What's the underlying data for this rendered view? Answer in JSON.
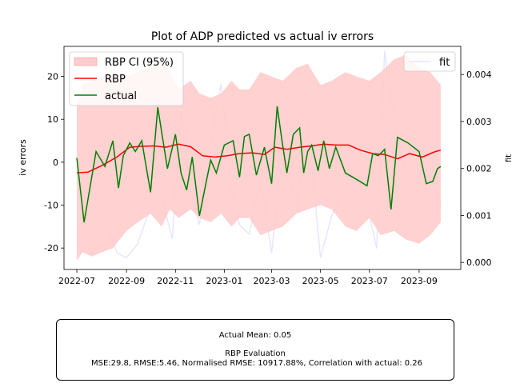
{
  "chart_data": {
    "type": "line",
    "title": "Plot of ADP predicted vs actual iv errors",
    "ylabel": "iv errors",
    "y2label": "fit",
    "ylim": [
      -25,
      27
    ],
    "y2lim": [
      -0.00015,
      0.0046
    ],
    "xlim": [
      "2022-06-15",
      "2023-10-23"
    ],
    "grid": false,
    "y_ticks": [
      -20,
      -10,
      0,
      10,
      20
    ],
    "y2_ticks": [
      0.0,
      0.001,
      0.002,
      0.003,
      0.004
    ],
    "y2_tick_labels": [
      "0.000",
      "0.001",
      "0.002",
      "0.003",
      "0.004"
    ],
    "x_ticks": [
      "2022-07-01",
      "2022-09-01",
      "2022-11-01",
      "2023-01-01",
      "2023-03-01",
      "2023-05-01",
      "2023-07-01",
      "2023-09-01"
    ],
    "x_tick_labels": [
      "2022-07",
      "2022-09",
      "2022-11",
      "2023-01",
      "2023-03",
      "2023-05",
      "2023-07",
      "2023-09"
    ],
    "legend_left": {
      "position": "upper-left",
      "entries": [
        {
          "label": "RBP CI (95%)",
          "kind": "patch",
          "color": "#ffcccc"
        },
        {
          "label": "RBP",
          "kind": "line",
          "color": "#ff0000"
        },
        {
          "label": "actual",
          "kind": "line",
          "color": "#008000"
        }
      ]
    },
    "legend_right": {
      "position": "upper-right",
      "entries": [
        {
          "label": "fit",
          "kind": "line",
          "color": "#e6e6ff"
        }
      ]
    },
    "colors": {
      "ci": "#ffcccc",
      "rbp": "#ff0000",
      "actual": "#008000",
      "fit": "#e6e6ff"
    },
    "ci": {
      "x": [
        "2022-07-01",
        "2022-07-08",
        "2022-07-20",
        "2022-08-01",
        "2022-08-15",
        "2022-09-01",
        "2022-09-15",
        "2022-10-01",
        "2022-10-15",
        "2022-10-25",
        "2022-11-05",
        "2022-11-20",
        "2022-12-01",
        "2022-12-15",
        "2022-12-28",
        "2023-01-10",
        "2023-01-20",
        "2023-02-01",
        "2023-02-15",
        "2023-03-01",
        "2023-03-15",
        "2023-04-01",
        "2023-04-15",
        "2023-05-01",
        "2023-05-15",
        "2023-06-01",
        "2023-06-15",
        "2023-07-01",
        "2023-07-15",
        "2023-08-01",
        "2023-08-15",
        "2023-09-01",
        "2023-09-15",
        "2023-09-28"
      ],
      "upper": [
        13,
        18,
        19,
        20,
        21,
        20,
        21,
        22,
        25,
        21,
        17,
        19,
        16,
        15,
        16,
        19,
        17,
        17,
        21,
        20,
        19,
        22,
        23,
        18,
        19,
        21,
        20,
        19,
        21,
        24,
        25,
        22,
        21,
        18
      ],
      "lower": [
        -23,
        -21,
        -22,
        -21,
        -20,
        -16,
        -14,
        -12,
        -15,
        -11,
        -13,
        -11,
        -13,
        -14,
        -12,
        -15,
        -13,
        -13,
        -17,
        -16,
        -15,
        -12,
        -11,
        -10,
        -11,
        -15,
        -16,
        -13,
        -17,
        -16,
        -18,
        -19,
        -17,
        -14
      ]
    },
    "rbp": {
      "x": [
        "2022-07-01",
        "2022-07-15",
        "2022-08-01",
        "2022-08-20",
        "2022-09-05",
        "2022-09-20",
        "2022-10-05",
        "2022-10-20",
        "2022-11-05",
        "2022-11-20",
        "2022-12-05",
        "2022-12-20",
        "2023-01-05",
        "2023-01-20",
        "2023-02-05",
        "2023-02-20",
        "2023-03-05",
        "2023-03-20",
        "2023-04-05",
        "2023-04-20",
        "2023-05-05",
        "2023-05-20",
        "2023-06-05",
        "2023-06-20",
        "2023-07-05",
        "2023-07-20",
        "2023-08-05",
        "2023-08-20",
        "2023-09-05",
        "2023-09-20",
        "2023-09-28"
      ],
      "y": [
        -2.5,
        -2.3,
        -0.8,
        1.2,
        3.5,
        3.7,
        3.8,
        3.5,
        4.2,
        3.6,
        1.5,
        1.2,
        1.5,
        2.0,
        2.2,
        1.8,
        3.5,
        3.0,
        3.5,
        3.8,
        4.2,
        4.0,
        4.0,
        2.8,
        2.0,
        1.8,
        0.8,
        2.0,
        1.2,
        2.4,
        2.8
      ]
    },
    "actual": {
      "x": [
        "2022-07-01",
        "2022-07-10",
        "2022-07-25",
        "2022-08-05",
        "2022-08-15",
        "2022-08-22",
        "2022-08-28",
        "2022-09-05",
        "2022-09-12",
        "2022-09-20",
        "2022-10-01",
        "2022-10-10",
        "2022-10-22",
        "2022-11-01",
        "2022-11-08",
        "2022-11-15",
        "2022-11-22",
        "2022-12-01",
        "2022-12-10",
        "2022-12-15",
        "2022-12-22",
        "2023-01-01",
        "2023-01-12",
        "2023-01-20",
        "2023-01-26",
        "2023-02-01",
        "2023-02-10",
        "2023-02-20",
        "2023-03-01",
        "2023-03-08",
        "2023-03-14",
        "2023-03-20",
        "2023-03-28",
        "2023-04-05",
        "2023-04-10",
        "2023-04-15",
        "2023-04-20",
        "2023-04-28",
        "2023-05-05",
        "2023-05-12",
        "2023-05-20",
        "2023-06-01",
        "2023-06-15",
        "2023-06-28",
        "2023-07-05",
        "2023-07-12",
        "2023-07-20",
        "2023-07-28",
        "2023-08-05",
        "2023-08-18",
        "2023-09-01",
        "2023-09-10",
        "2023-09-18",
        "2023-09-24",
        "2023-09-28"
      ],
      "y": [
        1.0,
        -14.0,
        2.5,
        -1.0,
        5.0,
        -6.0,
        1.5,
        4.5,
        2.5,
        5.0,
        -7.0,
        12.8,
        -1.5,
        6.5,
        -2.5,
        -6.5,
        1.2,
        -12.5,
        -4.0,
        0.5,
        -2.5,
        4.0,
        5.0,
        -3.5,
        6.0,
        6.5,
        -3.0,
        3.5,
        -5.0,
        13.0,
        5.0,
        -2.5,
        6.5,
        8.0,
        -2.5,
        2.5,
        4.0,
        -2.0,
        5.0,
        -1.5,
        3.5,
        -2.5,
        -4.0,
        -5.5,
        2.0,
        1.5,
        3.0,
        -11.0,
        5.8,
        4.5,
        2.5,
        -5.0,
        -4.5,
        -1.5,
        -1.0
      ]
    },
    "fit": {
      "x": [
        "2022-07-01",
        "2022-07-15",
        "2022-08-01",
        "2022-08-20",
        "2022-09-01",
        "2022-09-15",
        "2022-10-01",
        "2022-10-15",
        "2022-10-28",
        "2022-11-08",
        "2022-11-20",
        "2022-12-01",
        "2022-12-15",
        "2022-12-28",
        "2023-01-10",
        "2023-01-20",
        "2023-02-01",
        "2023-02-15",
        "2023-03-01",
        "2023-03-15",
        "2023-04-01",
        "2023-04-15",
        "2023-05-01",
        "2023-05-15",
        "2023-06-01",
        "2023-06-15",
        "2023-07-01",
        "2023-07-10",
        "2023-07-20",
        "2023-08-01",
        "2023-08-15",
        "2023-09-01",
        "2023-09-15",
        "2023-09-28"
      ],
      "y": [
        0.0004,
        0.0016,
        0.0012,
        0.0002,
        0.0001,
        0.0004,
        0.0012,
        0.0014,
        0.0005,
        0.0032,
        0.0015,
        0.0008,
        0.0025,
        0.0038,
        0.0016,
        0.0008,
        0.0006,
        0.0018,
        0.0002,
        0.0024,
        0.0012,
        0.003,
        0.0001,
        0.001,
        0.0016,
        0.0014,
        0.001,
        0.0003,
        0.0045,
        0.003,
        0.002,
        0.0014,
        0.0024,
        0.0012
      ]
    }
  },
  "stats": {
    "actual_mean": "Actual Mean: 0.05",
    "evaluation_title": "RBP Evaluation",
    "metrics": "MSE:29.8, RMSE:5.46, Normalised RMSE: 10917.88%, Correlation with actual: 0.26"
  }
}
